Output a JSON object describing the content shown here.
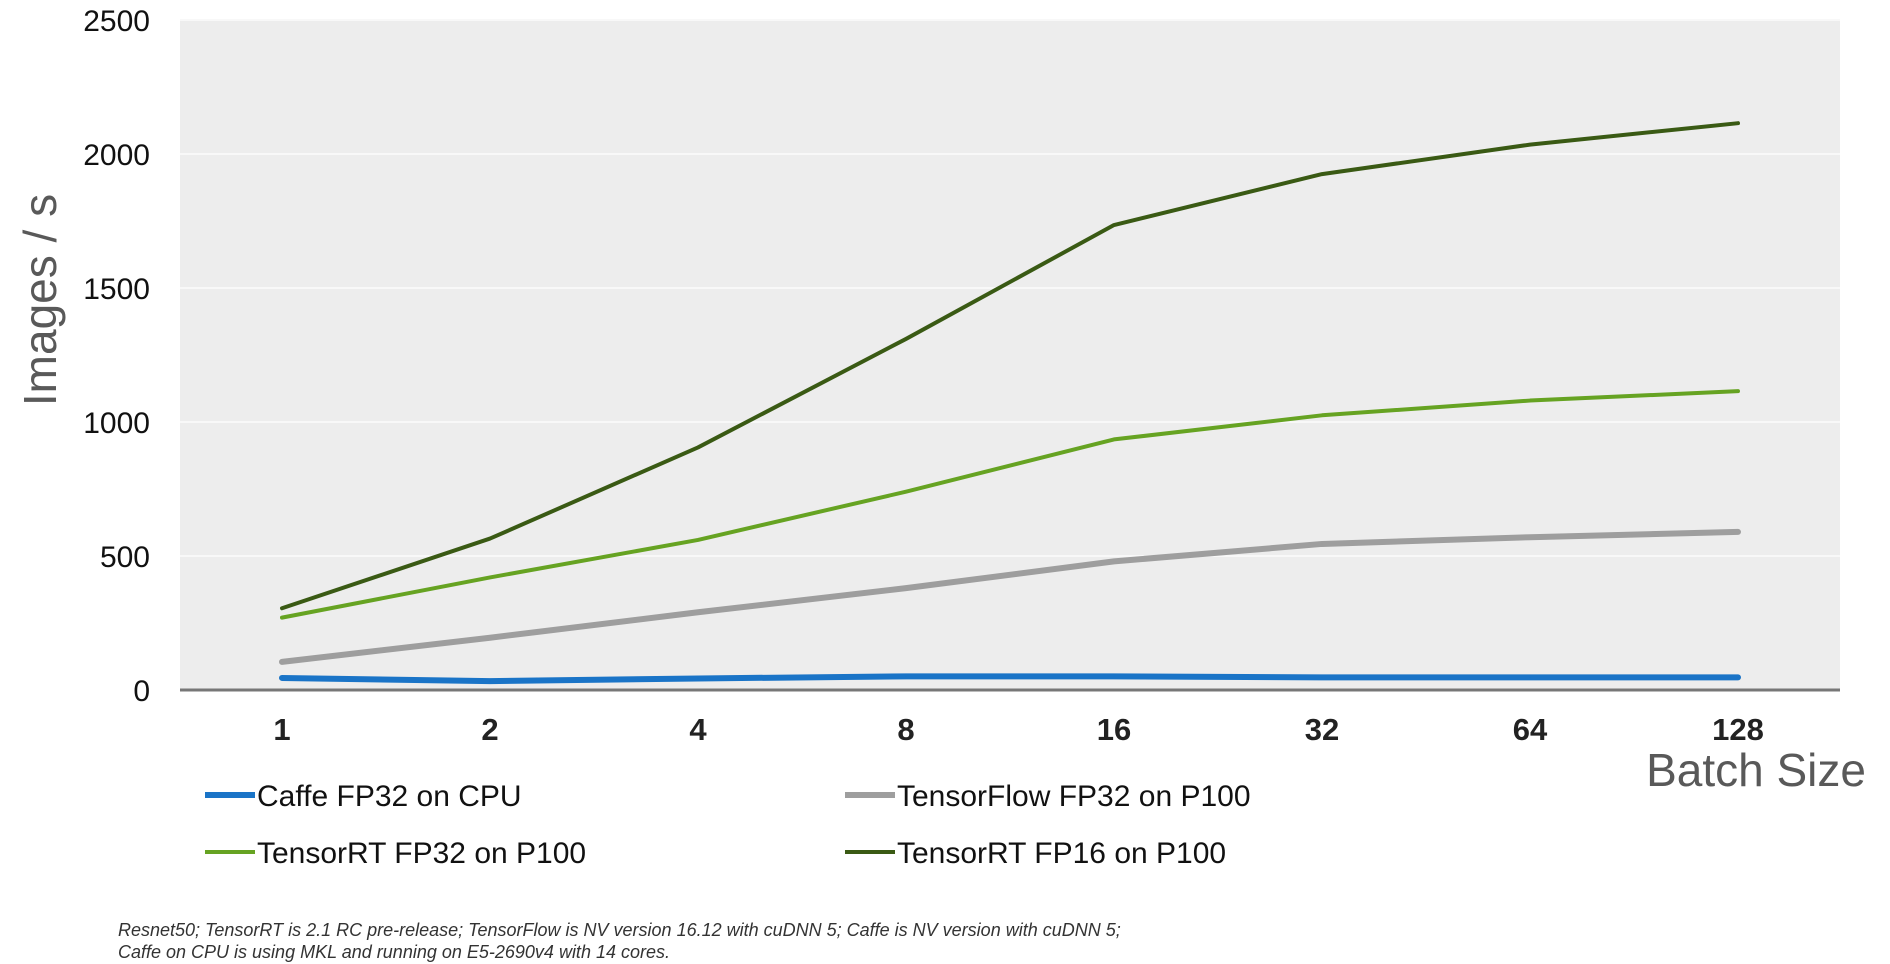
{
  "chart_data": {
    "type": "line",
    "title": "",
    "xlabel": "Batch Size",
    "ylabel": "Images / s",
    "categories": [
      "1",
      "2",
      "4",
      "8",
      "16",
      "32",
      "64",
      "128"
    ],
    "y_ticks": [
      "0",
      "500",
      "1000",
      "1500",
      "2000",
      "2500"
    ],
    "ylim": [
      0,
      2500
    ],
    "grid": true,
    "legend_position": "bottom",
    "series": [
      {
        "name": "Caffe FP32 on CPU",
        "color": "#1a74c7",
        "values": [
          45,
          33,
          43,
          51,
          51,
          47,
          47,
          47
        ]
      },
      {
        "name": "TensorFlow FP32 on P100",
        "color": "#9e9e9e",
        "values": [
          105,
          195,
          290,
          380,
          480,
          545,
          570,
          590
        ]
      },
      {
        "name": "TensorRT FP32 on P100",
        "color": "#66a322",
        "values": [
          270,
          420,
          560,
          740,
          935,
          1025,
          1080,
          1115
        ]
      },
      {
        "name": "TensorRT FP16 on P100",
        "color": "#3a5a14",
        "values": [
          305,
          565,
          905,
          1310,
          1735,
          1925,
          2035,
          2115
        ]
      }
    ],
    "footnote": [
      "Resnet50; TensorRT is  2.1 RC pre-release; TensorFlow is NV version 16.12 with cuDNN 5; Caffe is NV version with cuDNN 5;",
      "Caffe on CPU is using MKL and running on E5-2690v4 with 14 cores."
    ]
  }
}
